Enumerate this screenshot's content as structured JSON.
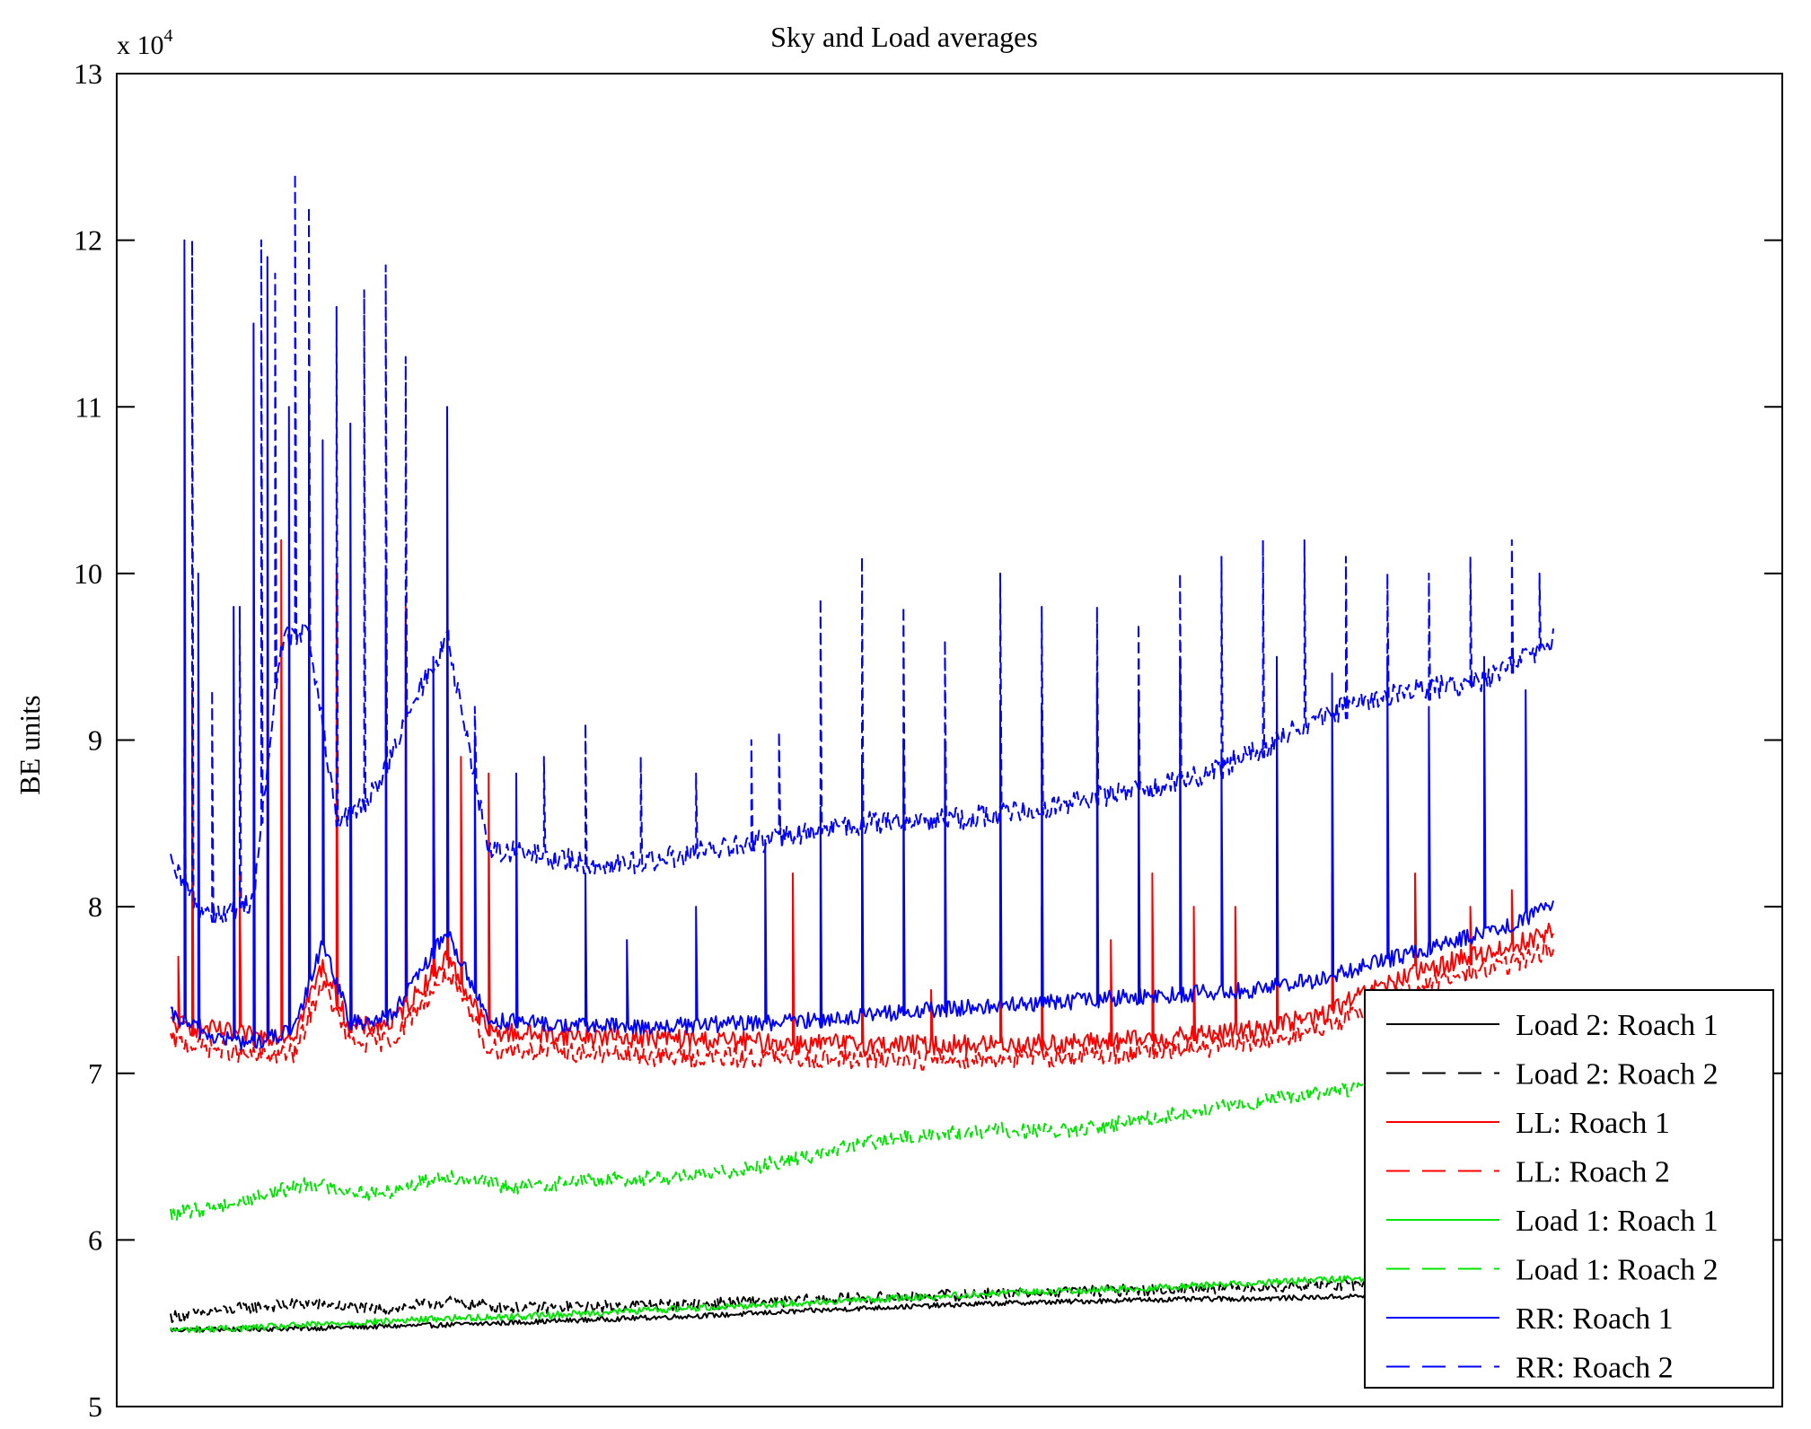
{
  "chart_data": {
    "type": "line",
    "title": "Sky and Load averages",
    "xlabel": "",
    "ylabel": "BE units",
    "ylim": [
      50000,
      130000
    ],
    "exponent_label": {
      "base": "x 10",
      "power": "4"
    },
    "yticks": [
      5,
      6,
      7,
      8,
      9,
      10,
      11,
      12,
      13
    ],
    "legend_position": "bottom-right",
    "series": [
      {
        "name": "Load 2: Roach 1",
        "color": "#000000",
        "dashed": false,
        "points": [
          [
            0,
            54600
          ],
          [
            0.1,
            54700
          ],
          [
            0.2,
            54900
          ],
          [
            0.3,
            55200
          ],
          [
            0.4,
            55500
          ],
          [
            0.5,
            55900
          ],
          [
            0.6,
            56200
          ],
          [
            0.7,
            56400
          ],
          [
            0.8,
            56500
          ],
          [
            0.9,
            56700
          ],
          [
            1,
            56900
          ]
        ],
        "noise": 150,
        "spikes": []
      },
      {
        "name": "Load 2: Roach 2",
        "color": "#000000",
        "dashed": true,
        "points": [
          [
            0,
            55400
          ],
          [
            0.05,
            55900
          ],
          [
            0.1,
            56200
          ],
          [
            0.15,
            55800
          ],
          [
            0.2,
            56300
          ],
          [
            0.25,
            55900
          ],
          [
            0.3,
            56000
          ],
          [
            0.4,
            56200
          ],
          [
            0.5,
            56500
          ],
          [
            0.6,
            56800
          ],
          [
            0.7,
            57000
          ],
          [
            0.8,
            57200
          ],
          [
            0.9,
            57400
          ],
          [
            1,
            57600
          ]
        ],
        "noise": 350,
        "spikes": []
      },
      {
        "name": "LL: Roach 1",
        "color": "#ff0000",
        "dashed": false,
        "points": [
          [
            0,
            73000
          ],
          [
            0.03,
            72600
          ],
          [
            0.06,
            72200
          ],
          [
            0.09,
            72400
          ],
          [
            0.11,
            76500
          ],
          [
            0.13,
            72700
          ],
          [
            0.16,
            73000
          ],
          [
            0.2,
            77000
          ],
          [
            0.23,
            72500
          ],
          [
            0.28,
            72300
          ],
          [
            0.35,
            72100
          ],
          [
            0.45,
            71800
          ],
          [
            0.55,
            71700
          ],
          [
            0.65,
            71800
          ],
          [
            0.72,
            72100
          ],
          [
            0.78,
            72600
          ],
          [
            0.83,
            73400
          ],
          [
            0.88,
            75400
          ],
          [
            0.93,
            76800
          ],
          [
            0.97,
            77600
          ],
          [
            1,
            78600
          ]
        ],
        "noise": 600,
        "spikes": [
          [
            0.005,
            77000
          ],
          [
            0.015,
            93000
          ],
          [
            0.05,
            82000
          ],
          [
            0.07,
            93000
          ],
          [
            0.08,
            102000
          ],
          [
            0.12,
            100000
          ],
          [
            0.13,
            96000
          ],
          [
            0.17,
            98000
          ],
          [
            0.19,
            95000
          ],
          [
            0.2,
            90000
          ],
          [
            0.21,
            89000
          ],
          [
            0.23,
            88000
          ],
          [
            0.45,
            82000
          ],
          [
            0.5,
            77000
          ],
          [
            0.55,
            75000
          ],
          [
            0.6,
            80000
          ],
          [
            0.63,
            80000
          ],
          [
            0.68,
            78000
          ],
          [
            0.71,
            82000
          ],
          [
            0.74,
            80000
          ],
          [
            0.77,
            80000
          ],
          [
            0.8,
            84000
          ],
          [
            0.84,
            82000
          ],
          [
            0.9,
            82000
          ],
          [
            0.94,
            80000
          ],
          [
            0.97,
            81000
          ]
        ]
      },
      {
        "name": "LL: Roach 2",
        "color": "#ff0000",
        "dashed": true,
        "points": [
          [
            0,
            72000
          ],
          [
            0.03,
            71500
          ],
          [
            0.06,
            71000
          ],
          [
            0.09,
            71200
          ],
          [
            0.11,
            75500
          ],
          [
            0.13,
            71700
          ],
          [
            0.16,
            72000
          ],
          [
            0.2,
            76000
          ],
          [
            0.23,
            71500
          ],
          [
            0.28,
            71300
          ],
          [
            0.35,
            71000
          ],
          [
            0.45,
            70900
          ],
          [
            0.55,
            70800
          ],
          [
            0.65,
            71000
          ],
          [
            0.72,
            71300
          ],
          [
            0.78,
            71800
          ],
          [
            0.83,
            72600
          ],
          [
            0.88,
            74400
          ],
          [
            0.93,
            75800
          ],
          [
            0.97,
            76600
          ],
          [
            1,
            77500
          ]
        ],
        "noise": 600,
        "spikes": []
      },
      {
        "name": "Load 1: Roach 1",
        "color": "#00e600",
        "dashed": false,
        "points": [
          [
            0,
            54600
          ],
          [
            0.05,
            54700
          ],
          [
            0.1,
            54900
          ],
          [
            0.15,
            55100
          ],
          [
            0.2,
            55300
          ],
          [
            0.25,
            55400
          ],
          [
            0.3,
            55600
          ],
          [
            0.4,
            56000
          ],
          [
            0.5,
            56400
          ],
          [
            0.6,
            56800
          ],
          [
            0.7,
            57100
          ],
          [
            0.8,
            57500
          ],
          [
            0.9,
            57800
          ],
          [
            1,
            58100
          ]
        ],
        "noise": 200,
        "spikes": []
      },
      {
        "name": "Load 1: Roach 2",
        "color": "#00e600",
        "dashed": true,
        "points": [
          [
            0,
            61500
          ],
          [
            0.05,
            62300
          ],
          [
            0.1,
            63400
          ],
          [
            0.15,
            62700
          ],
          [
            0.2,
            63900
          ],
          [
            0.25,
            63100
          ],
          [
            0.3,
            63600
          ],
          [
            0.38,
            63800
          ],
          [
            0.45,
            64800
          ],
          [
            0.5,
            65800
          ],
          [
            0.55,
            66300
          ],
          [
            0.6,
            66600
          ],
          [
            0.65,
            66500
          ],
          [
            0.7,
            67200
          ],
          [
            0.75,
            67800
          ],
          [
            0.8,
            68500
          ],
          [
            0.85,
            69000
          ],
          [
            0.9,
            69600
          ],
          [
            0.95,
            70200
          ],
          [
            1,
            70900
          ]
        ],
        "noise": 450,
        "spikes": []
      },
      {
        "name": "RR: Roach 1",
        "color": "#0000ff",
        "dashed": false,
        "points": [
          [
            0,
            73500
          ],
          [
            0.03,
            72200
          ],
          [
            0.06,
            71800
          ],
          [
            0.09,
            72600
          ],
          [
            0.11,
            78000
          ],
          [
            0.13,
            73000
          ],
          [
            0.16,
            73400
          ],
          [
            0.2,
            78500
          ],
          [
            0.23,
            73200
          ],
          [
            0.28,
            72900
          ],
          [
            0.35,
            72800
          ],
          [
            0.45,
            73100
          ],
          [
            0.55,
            73800
          ],
          [
            0.65,
            74300
          ],
          [
            0.72,
            74700
          ],
          [
            0.78,
            75000
          ],
          [
            0.83,
            75600
          ],
          [
            0.88,
            76800
          ],
          [
            0.93,
            78000
          ],
          [
            0.97,
            79000
          ],
          [
            1,
            80000
          ]
        ],
        "noise": 500,
        "spikes": [
          [
            0.01,
            120000
          ],
          [
            0.02,
            100000
          ],
          [
            0.045,
            98000
          ],
          [
            0.06,
            115000
          ],
          [
            0.07,
            119000
          ],
          [
            0.085,
            110000
          ],
          [
            0.1,
            112000
          ],
          [
            0.11,
            108000
          ],
          [
            0.13,
            109000
          ],
          [
            0.155,
            100000
          ],
          [
            0.17,
            97000
          ],
          [
            0.19,
            95000
          ],
          [
            0.2,
            110000
          ],
          [
            0.22,
            90000
          ],
          [
            0.25,
            88000
          ],
          [
            0.3,
            82000
          ],
          [
            0.33,
            78000
          ],
          [
            0.38,
            80000
          ],
          [
            0.43,
            84000
          ],
          [
            0.47,
            86000
          ],
          [
            0.5,
            89000
          ],
          [
            0.53,
            90000
          ],
          [
            0.56,
            90000
          ],
          [
            0.6,
            92000
          ],
          [
            0.63,
            92000
          ],
          [
            0.67,
            94000
          ],
          [
            0.7,
            93000
          ],
          [
            0.73,
            95000
          ],
          [
            0.76,
            89000
          ],
          [
            0.8,
            95000
          ],
          [
            0.84,
            94000
          ],
          [
            0.88,
            95000
          ],
          [
            0.91,
            92000
          ],
          [
            0.95,
            95000
          ],
          [
            0.98,
            93000
          ]
        ]
      },
      {
        "name": "RR: Roach 2",
        "color": "#0000ff",
        "dashed": true,
        "points": [
          [
            0,
            82500
          ],
          [
            0.02,
            80000
          ],
          [
            0.04,
            79500
          ],
          [
            0.06,
            80500
          ],
          [
            0.08,
            96000
          ],
          [
            0.1,
            96500
          ],
          [
            0.12,
            85000
          ],
          [
            0.14,
            86000
          ],
          [
            0.16,
            89000
          ],
          [
            0.18,
            93000
          ],
          [
            0.2,
            96000
          ],
          [
            0.23,
            83500
          ],
          [
            0.27,
            83000
          ],
          [
            0.31,
            82500
          ],
          [
            0.35,
            82800
          ],
          [
            0.4,
            83500
          ],
          [
            0.45,
            84300
          ],
          [
            0.5,
            85000
          ],
          [
            0.55,
            85200
          ],
          [
            0.6,
            85500
          ],
          [
            0.65,
            86300
          ],
          [
            0.7,
            87000
          ],
          [
            0.75,
            88000
          ],
          [
            0.8,
            90000
          ],
          [
            0.85,
            92000
          ],
          [
            0.9,
            93000
          ],
          [
            0.95,
            93500
          ],
          [
            1,
            96000
          ]
        ],
        "noise": 700,
        "spikes": [
          [
            0.01,
            89500
          ],
          [
            0.015,
            120000
          ],
          [
            0.03,
            93000
          ],
          [
            0.05,
            98000
          ],
          [
            0.065,
            120000
          ],
          [
            0.075,
            118000
          ],
          [
            0.09,
            124000
          ],
          [
            0.1,
            122000
          ],
          [
            0.12,
            116000
          ],
          [
            0.14,
            117000
          ],
          [
            0.155,
            118500
          ],
          [
            0.17,
            113000
          ],
          [
            0.2,
            97000
          ],
          [
            0.22,
            92000
          ],
          [
            0.27,
            89000
          ],
          [
            0.3,
            91000
          ],
          [
            0.34,
            89000
          ],
          [
            0.38,
            88000
          ],
          [
            0.42,
            90000
          ],
          [
            0.44,
            90500
          ],
          [
            0.47,
            98500
          ],
          [
            0.5,
            101000
          ],
          [
            0.53,
            98000
          ],
          [
            0.56,
            96000
          ],
          [
            0.6,
            100000
          ],
          [
            0.63,
            98000
          ],
          [
            0.67,
            98000
          ],
          [
            0.7,
            97000
          ],
          [
            0.73,
            100000
          ],
          [
            0.76,
            101000
          ],
          [
            0.79,
            102000
          ],
          [
            0.82,
            102000
          ],
          [
            0.85,
            101000
          ],
          [
            0.88,
            100000
          ],
          [
            0.91,
            100000
          ],
          [
            0.94,
            101000
          ],
          [
            0.97,
            102000
          ],
          [
            0.99,
            100000
          ]
        ]
      }
    ]
  }
}
